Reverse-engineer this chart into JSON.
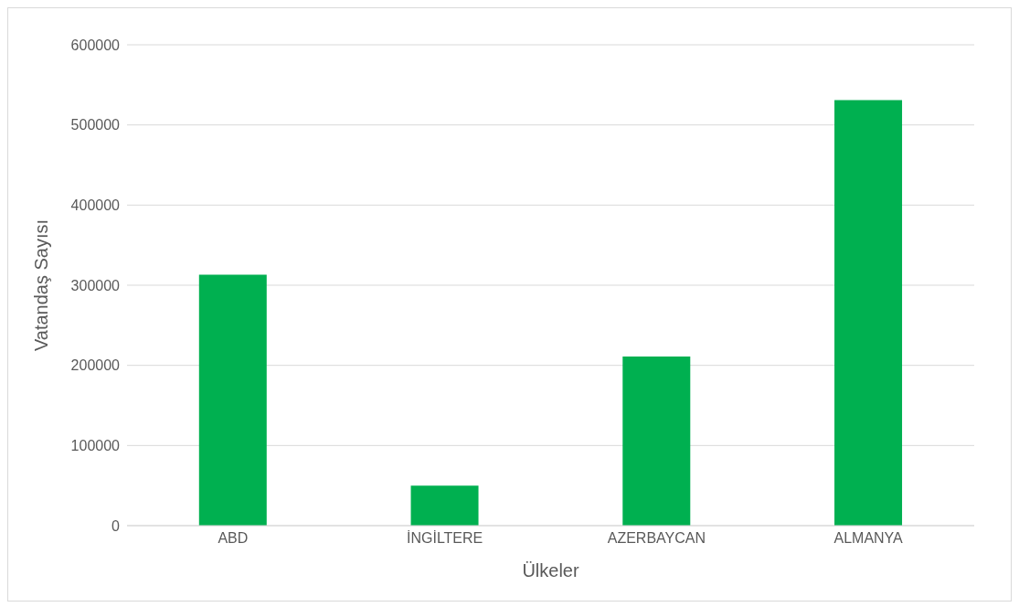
{
  "chart_data": {
    "type": "bar",
    "xlabel": "Ülkeler",
    "ylabel": "Vatandaş Sayısı",
    "categories": [
      "ABD",
      "İNGİLTERE",
      "AZERBAYCAN",
      "ALMANYA"
    ],
    "values": [
      313000,
      50000,
      211000,
      531000
    ],
    "color": "#00b050",
    "ylim": [
      0,
      600000
    ],
    "yticks": [
      0,
      100000,
      200000,
      300000,
      400000,
      500000,
      600000
    ],
    "grid": "y"
  }
}
